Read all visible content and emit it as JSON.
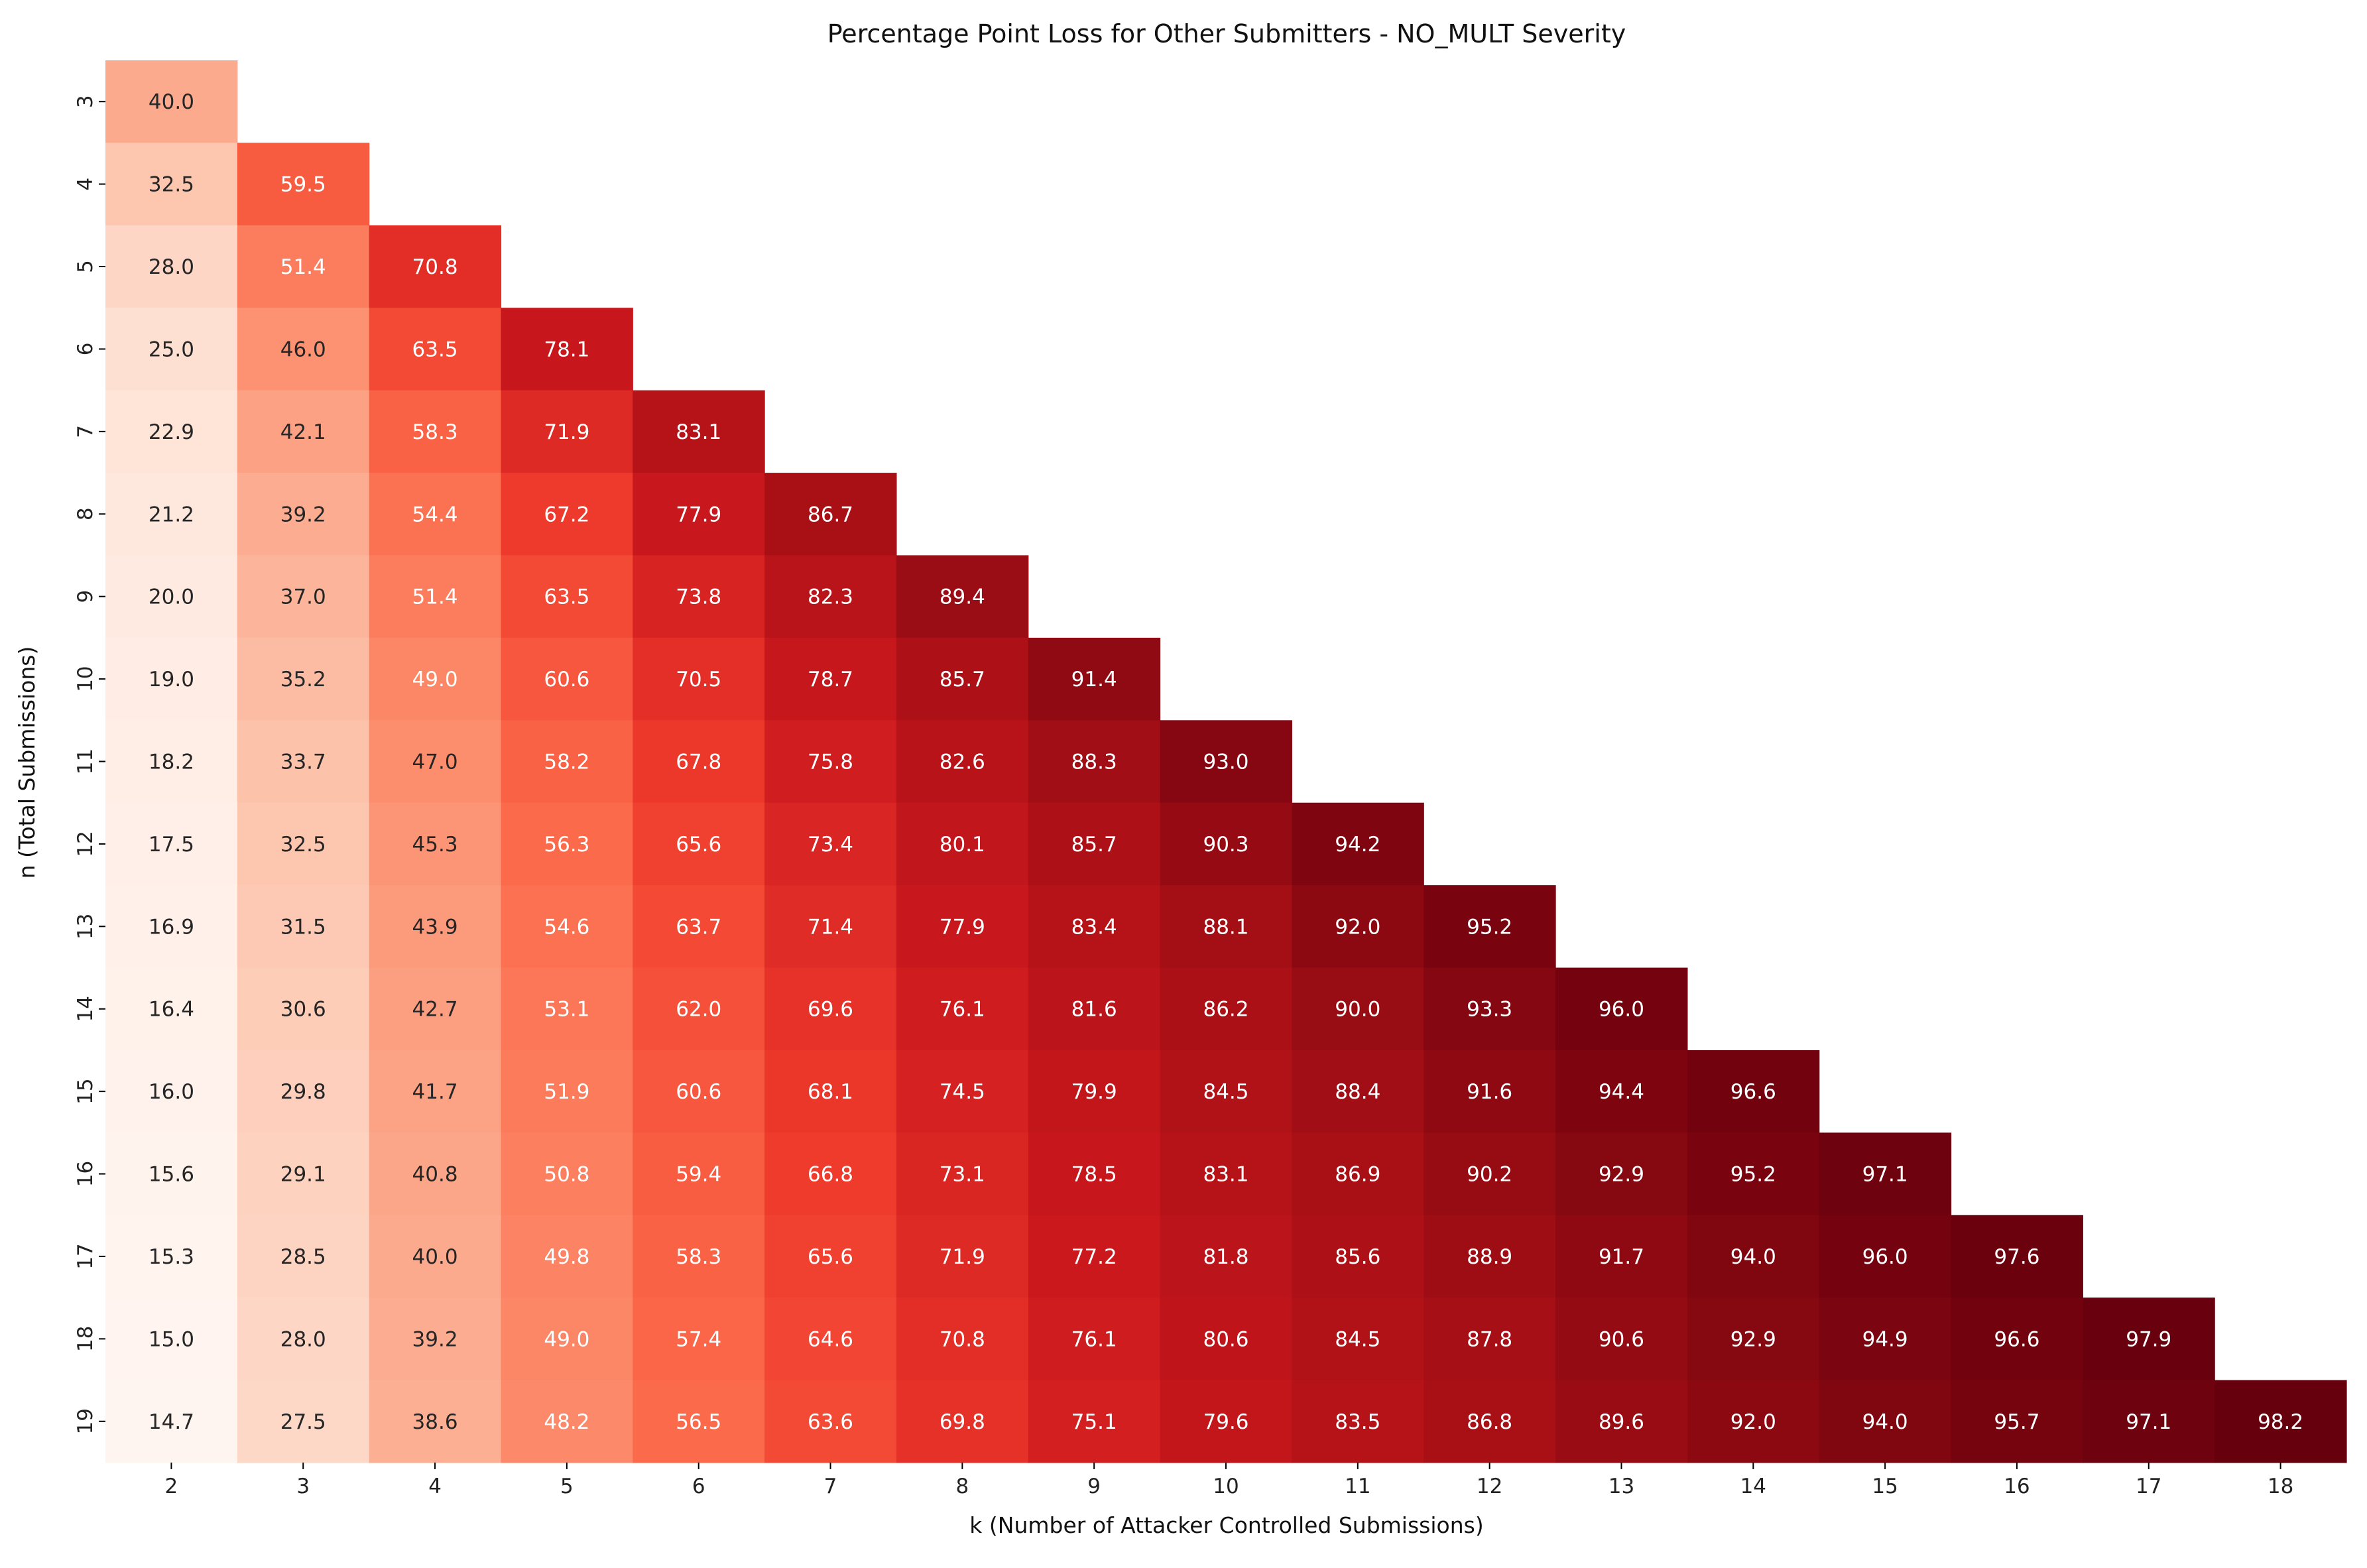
{
  "chart_data": {
    "type": "heatmap",
    "title": "Percentage Point Loss for Other Submitters - NO_MULT Severity",
    "xlabel": "k (Number of Attacker Controlled Submissions)",
    "ylabel": "n (Total Submissions)",
    "x_ticks": [
      "2",
      "3",
      "4",
      "5",
      "6",
      "7",
      "8",
      "9",
      "10",
      "11",
      "12",
      "13",
      "14",
      "15",
      "16",
      "17",
      "18"
    ],
    "y_ticks": [
      "3",
      "4",
      "5",
      "6",
      "7",
      "8",
      "9",
      "10",
      "11",
      "12",
      "13",
      "14",
      "15",
      "16",
      "17",
      "18",
      "19"
    ],
    "colormap": [
      "#fff5f0",
      "#fee0d2",
      "#fcbba1",
      "#fc9272",
      "#fb6a4a",
      "#ef3b2c",
      "#cb181d",
      "#a50f15",
      "#67000d"
    ],
    "value_range": [
      14.7,
      98.2
    ],
    "values": [
      [
        40.0
      ],
      [
        32.5,
        59.5
      ],
      [
        28.0,
        51.4,
        70.8
      ],
      [
        25.0,
        46.0,
        63.5,
        78.1
      ],
      [
        22.9,
        42.1,
        58.3,
        71.9,
        83.1
      ],
      [
        21.2,
        39.2,
        54.4,
        67.2,
        77.9,
        86.7
      ],
      [
        20.0,
        37.0,
        51.4,
        63.5,
        73.8,
        82.3,
        89.4
      ],
      [
        19.0,
        35.2,
        49.0,
        60.6,
        70.5,
        78.7,
        85.7,
        91.4
      ],
      [
        18.2,
        33.7,
        47.0,
        58.2,
        67.8,
        75.8,
        82.6,
        88.3,
        93.0
      ],
      [
        17.5,
        32.5,
        45.3,
        56.3,
        65.6,
        73.4,
        80.1,
        85.7,
        90.3,
        94.2
      ],
      [
        16.9,
        31.5,
        43.9,
        54.6,
        63.7,
        71.4,
        77.9,
        83.4,
        88.1,
        92.0,
        95.2
      ],
      [
        16.4,
        30.6,
        42.7,
        53.1,
        62.0,
        69.6,
        76.1,
        81.6,
        86.2,
        90.0,
        93.3,
        96.0
      ],
      [
        16.0,
        29.8,
        41.7,
        51.9,
        60.6,
        68.1,
        74.5,
        79.9,
        84.5,
        88.4,
        91.6,
        94.4,
        96.6
      ],
      [
        15.6,
        29.1,
        40.8,
        50.8,
        59.4,
        66.8,
        73.1,
        78.5,
        83.1,
        86.9,
        90.2,
        92.9,
        95.2,
        97.1
      ],
      [
        15.3,
        28.5,
        40.0,
        49.8,
        58.3,
        65.6,
        71.9,
        77.2,
        81.8,
        85.6,
        88.9,
        91.7,
        94.0,
        96.0,
        97.6
      ],
      [
        15.0,
        28.0,
        39.2,
        49.0,
        57.4,
        64.6,
        70.8,
        76.1,
        80.6,
        84.5,
        87.8,
        90.6,
        92.9,
        94.9,
        96.6,
        97.9
      ],
      [
        14.7,
        27.5,
        38.6,
        48.2,
        56.5,
        63.6,
        69.8,
        75.1,
        79.6,
        83.5,
        86.8,
        89.6,
        92.0,
        94.0,
        95.7,
        97.1,
        98.2
      ]
    ]
  }
}
